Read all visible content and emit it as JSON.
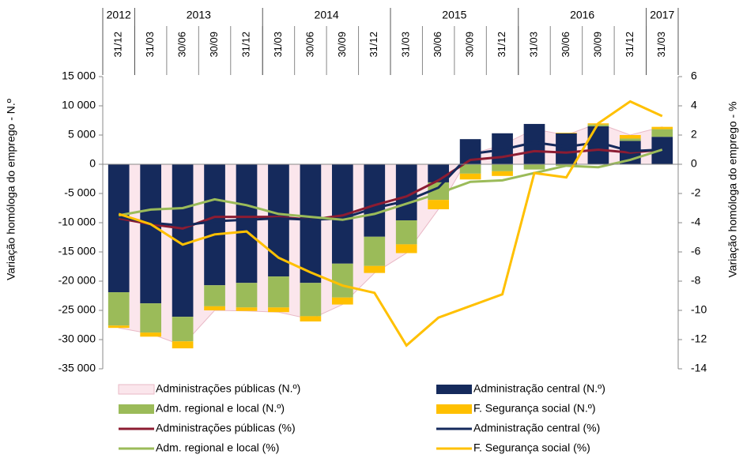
{
  "chart_data": {
    "type": "bar",
    "y_label": "Variação homóloga do emprego - N.º",
    "y2_label": "Variação homóloga do emprego - %",
    "categories": [
      "31/12",
      "31/03",
      "30/06",
      "30/09",
      "31/12",
      "31/03",
      "30/06",
      "30/09",
      "31/12",
      "31/03",
      "30/06",
      "30/09",
      "31/12",
      "31/03",
      "30/06",
      "30/09",
      "31/12",
      "31/03"
    ],
    "x_groups": [
      {
        "label": "2012",
        "count": 1
      },
      {
        "label": "2013",
        "count": 4
      },
      {
        "label": "2014",
        "count": 4
      },
      {
        "label": "2015",
        "count": 4
      },
      {
        "label": "2016",
        "count": 4
      },
      {
        "label": "2017",
        "count": 1
      }
    ],
    "ylim": [
      -35000,
      15000
    ],
    "yticks": [
      {
        "value": 15000,
        "label": "15 000"
      },
      {
        "value": 10000,
        "label": "10 000"
      },
      {
        "value": 5000,
        "label": "5 000"
      },
      0,
      {
        "value": -5000,
        "label": "-5 000"
      },
      {
        "value": -10000,
        "label": "-10 000"
      },
      {
        "value": -15000,
        "label": "-15 000"
      },
      {
        "value": -20000,
        "label": "-20 000"
      },
      {
        "value": -25000,
        "label": "-25 000"
      },
      {
        "value": -30000,
        "label": "-30 000"
      },
      {
        "value": -35000,
        "label": "-35 000"
      }
    ],
    "y2lim": [
      -14,
      6
    ],
    "y2ticks": [
      6,
      4,
      2,
      0,
      -2,
      -4,
      -6,
      -8,
      -10,
      -12,
      -14
    ],
    "series": [
      {
        "name": "Administrações públicas (N.º)",
        "type": "area",
        "color": "#fbe6ec",
        "values": [
          -28000,
          -29000,
          -31000,
          -25000,
          -25100,
          -25300,
          -26500,
          -24000,
          -18600,
          -15200,
          -7700,
          1700,
          3300,
          6000,
          5000,
          7000,
          5000,
          6400
        ]
      },
      {
        "name": "Administração central (N.º)",
        "type": "bar",
        "color": "#152a5c",
        "values": [
          -21900,
          -23800,
          -26100,
          -20700,
          -20300,
          -19200,
          -20300,
          -17000,
          -12400,
          -9600,
          -3100,
          4300,
          5300,
          6900,
          5300,
          6500,
          4000,
          4700
        ]
      },
      {
        "name": "Adm. regional e local (N.º)",
        "type": "bar",
        "color": "#9bbb59",
        "values": [
          -5700,
          -5000,
          -4200,
          -3600,
          -4200,
          -5300,
          -5700,
          -5800,
          -5000,
          -4100,
          -3000,
          -1600,
          -1200,
          -900,
          -300,
          300,
          400,
          1300
        ]
      },
      {
        "name": "F. Segurança social  (N.º)",
        "type": "bar",
        "color": "#ffc000",
        "values": [
          -400,
          -700,
          -1200,
          -700,
          -600,
          -800,
          -900,
          -1200,
          -1200,
          -1500,
          -1600,
          -1000,
          -800,
          0,
          100,
          200,
          600,
          400
        ]
      },
      {
        "name": "Administrações públicas (%)",
        "type": "line",
        "axis": "y2",
        "color": "#8c1c32",
        "values": [
          -3.7,
          -4.1,
          -4.4,
          -3.6,
          -3.6,
          -3.6,
          -3.8,
          -3.5,
          -2.8,
          -2.2,
          -1.1,
          0.3,
          0.5,
          0.9,
          0.8,
          1.0,
          0.8,
          1.0
        ]
      },
      {
        "name": "Administração central  (%)",
        "type": "line",
        "axis": "y2",
        "color": "#152a5c",
        "values": [
          -3.6,
          -4.0,
          -4.2,
          -3.9,
          -3.8,
          -3.7,
          -3.8,
          -3.7,
          -3.0,
          -2.5,
          -1.6,
          0.7,
          1.0,
          1.5,
          1.2,
          1.5,
          0.9,
          1.0
        ]
      },
      {
        "name": "Adm. regional e local (%)",
        "type": "line",
        "axis": "y2",
        "color": "#9bbb59",
        "values": [
          -3.5,
          -3.1,
          -3.0,
          -2.4,
          -2.8,
          -3.4,
          -3.6,
          -3.8,
          -3.4,
          -2.7,
          -2.0,
          -1.2,
          -1.1,
          -0.6,
          -0.1,
          -0.2,
          0.3,
          1.0
        ]
      },
      {
        "name": "F. Segurança social  (%)",
        "type": "line",
        "axis": "y2",
        "color": "#ffc000",
        "values": [
          -3.4,
          -4.1,
          -5.5,
          -4.8,
          -4.6,
          -6.4,
          -7.4,
          -8.3,
          -8.8,
          -12.4,
          -10.5,
          -9.7,
          -8.9,
          -0.6,
          -0.9,
          2.8,
          4.3,
          3.3
        ]
      }
    ]
  }
}
